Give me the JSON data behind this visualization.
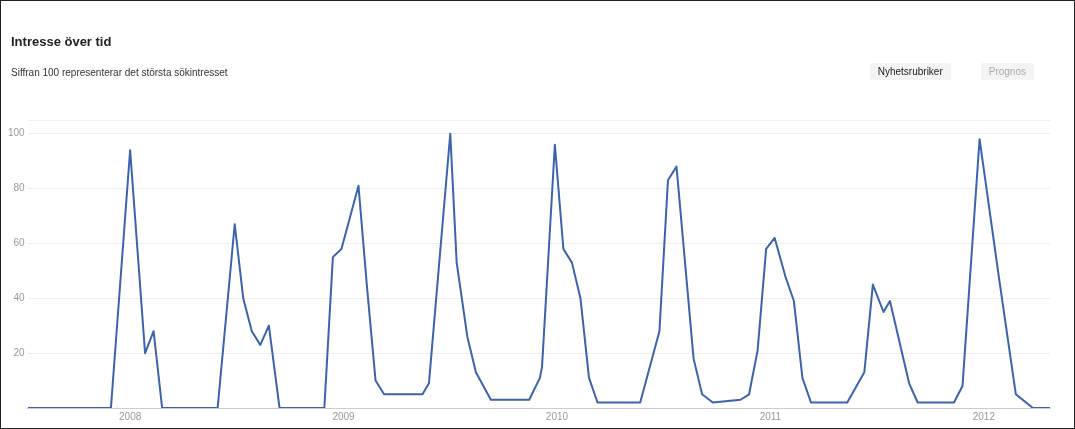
{
  "chart_data": {
    "type": "line",
    "title": "Intresse över tid",
    "subtitle": "Siffran 100 representerar det största sökintresset",
    "annotations": [
      "Nyhetsrubriker",
      "Prognos"
    ],
    "x": [
      2007.52,
      2007.91,
      2008.0,
      2008.07,
      2008.11,
      2008.15,
      2008.41,
      2008.49,
      2008.53,
      2008.57,
      2008.61,
      2008.65,
      2008.7,
      2008.91,
      2008.95,
      2008.99,
      2009.07,
      2009.11,
      2009.15,
      2009.19,
      2009.37,
      2009.4,
      2009.5,
      2009.53,
      2009.58,
      2009.62,
      2009.69,
      2009.87,
      2009.92,
      2009.93,
      2009.99,
      2010.03,
      2010.07,
      2010.11,
      2010.15,
      2010.19,
      2010.39,
      2010.48,
      2010.52,
      2010.56,
      2010.64,
      2010.68,
      2010.73,
      2010.86,
      2010.9,
      2010.94,
      2010.98,
      2011.02,
      2011.07,
      2011.11,
      2011.15,
      2011.19,
      2011.36,
      2011.44,
      2011.48,
      2011.53,
      2011.56,
      2011.65,
      2011.69,
      2011.86,
      2011.9,
      2011.98,
      2012.07,
      2012.15,
      2012.23,
      2012.31
    ],
    "series": [
      {
        "color": "#3b64ad",
        "values": [
          0,
          0,
          94,
          20,
          28,
          0,
          0,
          67,
          40,
          28,
          23,
          30,
          0,
          0,
          55,
          58,
          81,
          44,
          10,
          5,
          5,
          9,
          100,
          53,
          26,
          13,
          3,
          3,
          11,
          15,
          96,
          58,
          53,
          40,
          11,
          2,
          2,
          28,
          83,
          88,
          18,
          5,
          2,
          3,
          5,
          21,
          58,
          62,
          48,
          39,
          11,
          2,
          2,
          13,
          45,
          35,
          39,
          9,
          2,
          2,
          8,
          98,
          48,
          5,
          0,
          0
        ]
      }
    ],
    "xlim": [
      2007.52,
      2012.31
    ],
    "xticks": [
      2008,
      2009,
      2010,
      2011,
      2012
    ],
    "ylim": [
      0,
      105
    ],
    "yticks": [
      20,
      40,
      60,
      80,
      100,
      {
        "value": 105,
        "label": null
      }
    ],
    "grid": "y",
    "legend": false,
    "marker": "none",
    "line_style": "solid"
  }
}
